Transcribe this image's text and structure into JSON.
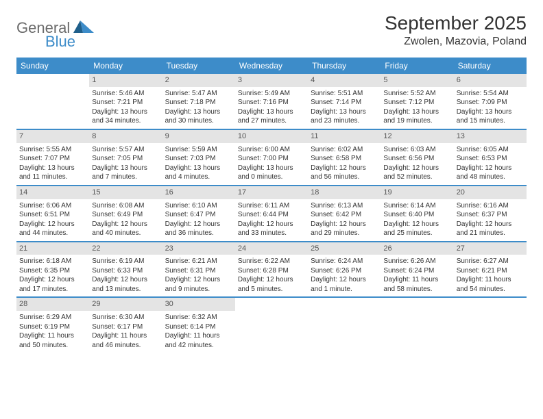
{
  "logo": {
    "text_main": "General",
    "text_sub": "Blue",
    "brand_color": "#3d8cc9",
    "gray": "#6b6b6b"
  },
  "header": {
    "month_title": "September 2025",
    "location": "Zwolen, Mazovia, Poland"
  },
  "colors": {
    "header_bg": "#3d8cc9",
    "header_text": "#ffffff",
    "daynum_bg": "#e4e4e4",
    "daynum_text": "#555555",
    "body_text": "#333333",
    "row_border": "#3d8cc9",
    "background": "#ffffff"
  },
  "typography": {
    "month_title_fontsize": 28,
    "location_fontsize": 16,
    "weekday_fontsize": 12,
    "daynum_fontsize": 11,
    "cell_fontsize": 10
  },
  "weekdays": [
    "Sunday",
    "Monday",
    "Tuesday",
    "Wednesday",
    "Thursday",
    "Friday",
    "Saturday"
  ],
  "weeks": [
    [
      {
        "empty": true
      },
      {
        "day": "1",
        "sunrise": "Sunrise: 5:46 AM",
        "sunset": "Sunset: 7:21 PM",
        "daylight1": "Daylight: 13 hours",
        "daylight2": "and 34 minutes."
      },
      {
        "day": "2",
        "sunrise": "Sunrise: 5:47 AM",
        "sunset": "Sunset: 7:18 PM",
        "daylight1": "Daylight: 13 hours",
        "daylight2": "and 30 minutes."
      },
      {
        "day": "3",
        "sunrise": "Sunrise: 5:49 AM",
        "sunset": "Sunset: 7:16 PM",
        "daylight1": "Daylight: 13 hours",
        "daylight2": "and 27 minutes."
      },
      {
        "day": "4",
        "sunrise": "Sunrise: 5:51 AM",
        "sunset": "Sunset: 7:14 PM",
        "daylight1": "Daylight: 13 hours",
        "daylight2": "and 23 minutes."
      },
      {
        "day": "5",
        "sunrise": "Sunrise: 5:52 AM",
        "sunset": "Sunset: 7:12 PM",
        "daylight1": "Daylight: 13 hours",
        "daylight2": "and 19 minutes."
      },
      {
        "day": "6",
        "sunrise": "Sunrise: 5:54 AM",
        "sunset": "Sunset: 7:09 PM",
        "daylight1": "Daylight: 13 hours",
        "daylight2": "and 15 minutes."
      }
    ],
    [
      {
        "day": "7",
        "sunrise": "Sunrise: 5:55 AM",
        "sunset": "Sunset: 7:07 PM",
        "daylight1": "Daylight: 13 hours",
        "daylight2": "and 11 minutes."
      },
      {
        "day": "8",
        "sunrise": "Sunrise: 5:57 AM",
        "sunset": "Sunset: 7:05 PM",
        "daylight1": "Daylight: 13 hours",
        "daylight2": "and 7 minutes."
      },
      {
        "day": "9",
        "sunrise": "Sunrise: 5:59 AM",
        "sunset": "Sunset: 7:03 PM",
        "daylight1": "Daylight: 13 hours",
        "daylight2": "and 4 minutes."
      },
      {
        "day": "10",
        "sunrise": "Sunrise: 6:00 AM",
        "sunset": "Sunset: 7:00 PM",
        "daylight1": "Daylight: 13 hours",
        "daylight2": "and 0 minutes."
      },
      {
        "day": "11",
        "sunrise": "Sunrise: 6:02 AM",
        "sunset": "Sunset: 6:58 PM",
        "daylight1": "Daylight: 12 hours",
        "daylight2": "and 56 minutes."
      },
      {
        "day": "12",
        "sunrise": "Sunrise: 6:03 AM",
        "sunset": "Sunset: 6:56 PM",
        "daylight1": "Daylight: 12 hours",
        "daylight2": "and 52 minutes."
      },
      {
        "day": "13",
        "sunrise": "Sunrise: 6:05 AM",
        "sunset": "Sunset: 6:53 PM",
        "daylight1": "Daylight: 12 hours",
        "daylight2": "and 48 minutes."
      }
    ],
    [
      {
        "day": "14",
        "sunrise": "Sunrise: 6:06 AM",
        "sunset": "Sunset: 6:51 PM",
        "daylight1": "Daylight: 12 hours",
        "daylight2": "and 44 minutes."
      },
      {
        "day": "15",
        "sunrise": "Sunrise: 6:08 AM",
        "sunset": "Sunset: 6:49 PM",
        "daylight1": "Daylight: 12 hours",
        "daylight2": "and 40 minutes."
      },
      {
        "day": "16",
        "sunrise": "Sunrise: 6:10 AM",
        "sunset": "Sunset: 6:47 PM",
        "daylight1": "Daylight: 12 hours",
        "daylight2": "and 36 minutes."
      },
      {
        "day": "17",
        "sunrise": "Sunrise: 6:11 AM",
        "sunset": "Sunset: 6:44 PM",
        "daylight1": "Daylight: 12 hours",
        "daylight2": "and 33 minutes."
      },
      {
        "day": "18",
        "sunrise": "Sunrise: 6:13 AM",
        "sunset": "Sunset: 6:42 PM",
        "daylight1": "Daylight: 12 hours",
        "daylight2": "and 29 minutes."
      },
      {
        "day": "19",
        "sunrise": "Sunrise: 6:14 AM",
        "sunset": "Sunset: 6:40 PM",
        "daylight1": "Daylight: 12 hours",
        "daylight2": "and 25 minutes."
      },
      {
        "day": "20",
        "sunrise": "Sunrise: 6:16 AM",
        "sunset": "Sunset: 6:37 PM",
        "daylight1": "Daylight: 12 hours",
        "daylight2": "and 21 minutes."
      }
    ],
    [
      {
        "day": "21",
        "sunrise": "Sunrise: 6:18 AM",
        "sunset": "Sunset: 6:35 PM",
        "daylight1": "Daylight: 12 hours",
        "daylight2": "and 17 minutes."
      },
      {
        "day": "22",
        "sunrise": "Sunrise: 6:19 AM",
        "sunset": "Sunset: 6:33 PM",
        "daylight1": "Daylight: 12 hours",
        "daylight2": "and 13 minutes."
      },
      {
        "day": "23",
        "sunrise": "Sunrise: 6:21 AM",
        "sunset": "Sunset: 6:31 PM",
        "daylight1": "Daylight: 12 hours",
        "daylight2": "and 9 minutes."
      },
      {
        "day": "24",
        "sunrise": "Sunrise: 6:22 AM",
        "sunset": "Sunset: 6:28 PM",
        "daylight1": "Daylight: 12 hours",
        "daylight2": "and 5 minutes."
      },
      {
        "day": "25",
        "sunrise": "Sunrise: 6:24 AM",
        "sunset": "Sunset: 6:26 PM",
        "daylight1": "Daylight: 12 hours",
        "daylight2": "and 1 minute."
      },
      {
        "day": "26",
        "sunrise": "Sunrise: 6:26 AM",
        "sunset": "Sunset: 6:24 PM",
        "daylight1": "Daylight: 11 hours",
        "daylight2": "and 58 minutes."
      },
      {
        "day": "27",
        "sunrise": "Sunrise: 6:27 AM",
        "sunset": "Sunset: 6:21 PM",
        "daylight1": "Daylight: 11 hours",
        "daylight2": "and 54 minutes."
      }
    ],
    [
      {
        "day": "28",
        "sunrise": "Sunrise: 6:29 AM",
        "sunset": "Sunset: 6:19 PM",
        "daylight1": "Daylight: 11 hours",
        "daylight2": "and 50 minutes."
      },
      {
        "day": "29",
        "sunrise": "Sunrise: 6:30 AM",
        "sunset": "Sunset: 6:17 PM",
        "daylight1": "Daylight: 11 hours",
        "daylight2": "and 46 minutes."
      },
      {
        "day": "30",
        "sunrise": "Sunrise: 6:32 AM",
        "sunset": "Sunset: 6:14 PM",
        "daylight1": "Daylight: 11 hours",
        "daylight2": "and 42 minutes."
      },
      {
        "empty": true
      },
      {
        "empty": true
      },
      {
        "empty": true
      },
      {
        "empty": true
      }
    ]
  ]
}
